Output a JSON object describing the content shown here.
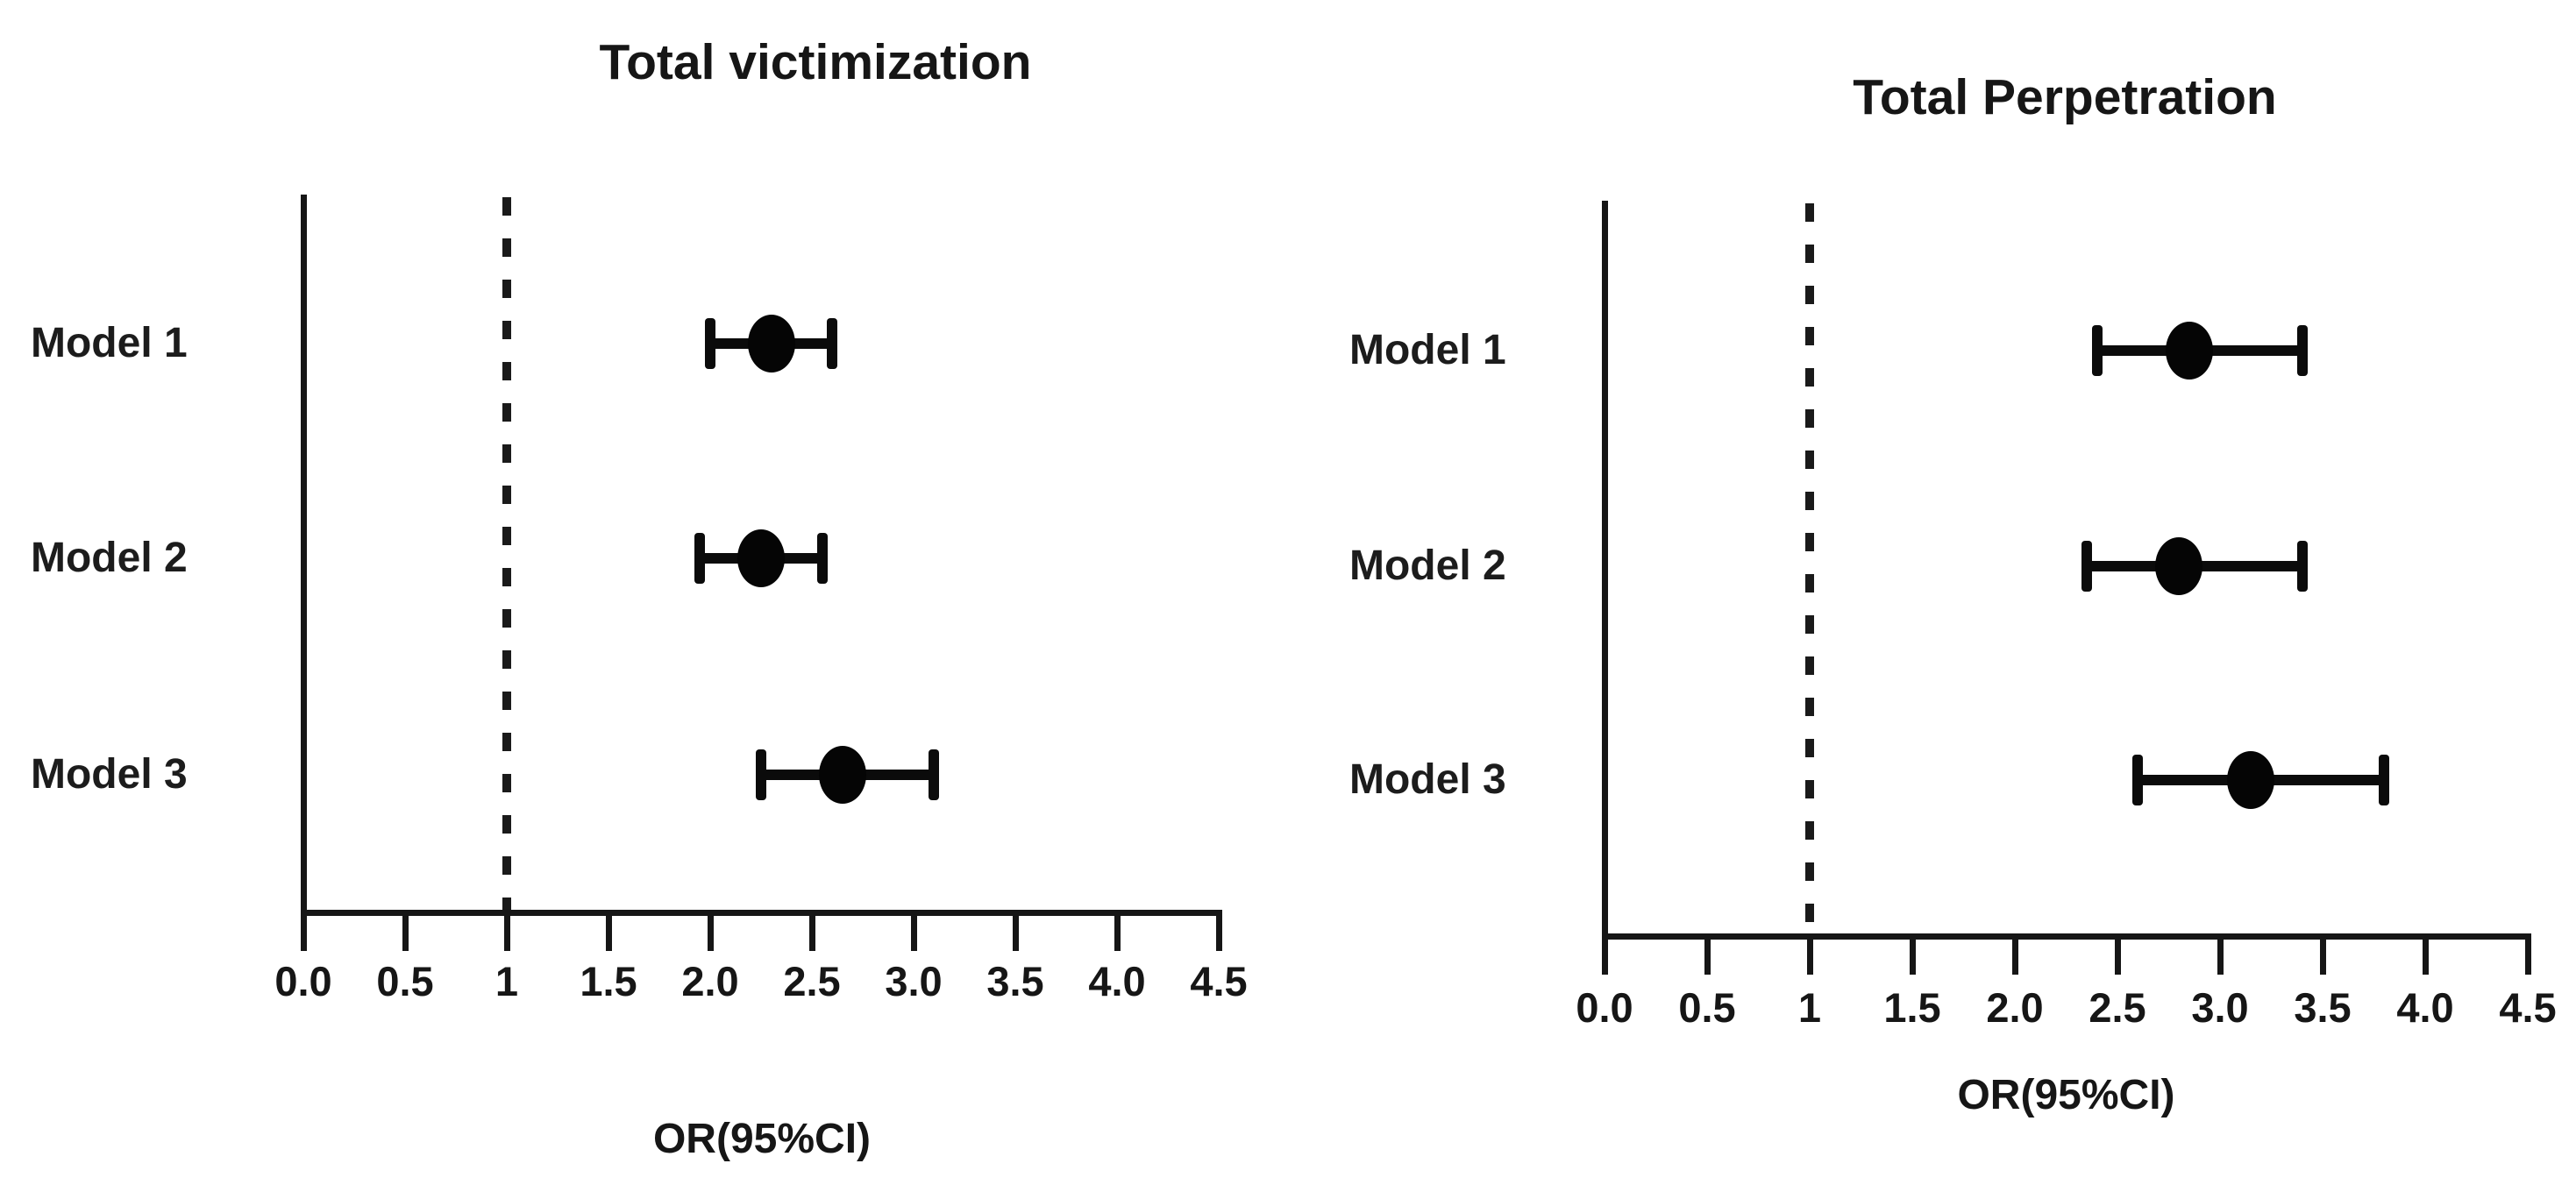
{
  "page": {
    "background_color": "#ffffff",
    "text_color": "#161616",
    "marker_color": "#050505"
  },
  "chart_data": [
    {
      "type": "scatter",
      "variant": "forest-plot-with-error-bars",
      "panel": "victimization",
      "title": "Total victimization",
      "xlabel": "OR(95%CI)",
      "xlim": [
        0,
        4.5
      ],
      "reference_line_x": 1,
      "reference_line_style": "dashed",
      "grid": false,
      "x_ticks": [
        {
          "v": 0.0,
          "label": "0.0"
        },
        {
          "v": 0.5,
          "label": "0.5"
        },
        {
          "v": 1.0,
          "label": "1"
        },
        {
          "v": 1.5,
          "label": "1.5"
        },
        {
          "v": 2.0,
          "label": "2.0"
        },
        {
          "v": 2.5,
          "label": "2.5"
        },
        {
          "v": 3.0,
          "label": "3.0"
        },
        {
          "v": 3.5,
          "label": "3.5"
        },
        {
          "v": 4.0,
          "label": "4.0"
        },
        {
          "v": 4.5,
          "label": "4.5"
        }
      ],
      "models": [
        {
          "label": "Model 1",
          "or": 2.3,
          "ci_low": 2.0,
          "ci_high": 2.6
        },
        {
          "label": "Model 2",
          "or": 2.25,
          "ci_low": 1.95,
          "ci_high": 2.55
        },
        {
          "label": "Model 3",
          "or": 2.65,
          "ci_low": 2.25,
          "ci_high": 3.1
        }
      ]
    },
    {
      "type": "scatter",
      "variant": "forest-plot-with-error-bars",
      "panel": "perpetration",
      "title": "Total Perpetration",
      "xlabel": "OR(95%CI)",
      "xlim": [
        0,
        4.5
      ],
      "reference_line_x": 1,
      "reference_line_style": "dashed",
      "grid": false,
      "x_ticks": [
        {
          "v": 0.0,
          "label": "0.0"
        },
        {
          "v": 0.5,
          "label": "0.5"
        },
        {
          "v": 1.0,
          "label": "1"
        },
        {
          "v": 1.5,
          "label": "1.5"
        },
        {
          "v": 2.0,
          "label": "2.0"
        },
        {
          "v": 2.5,
          "label": "2.5"
        },
        {
          "v": 3.0,
          "label": "3.0"
        },
        {
          "v": 3.5,
          "label": "3.5"
        },
        {
          "v": 4.0,
          "label": "4.0"
        },
        {
          "v": 4.5,
          "label": "4.5"
        }
      ],
      "models": [
        {
          "label": "Model 1",
          "or": 2.85,
          "ci_low": 2.4,
          "ci_high": 3.4
        },
        {
          "label": "Model 2",
          "or": 2.8,
          "ci_low": 2.35,
          "ci_high": 3.4
        },
        {
          "label": "Model 3",
          "or": 3.15,
          "ci_low": 2.6,
          "ci_high": 3.8
        }
      ]
    }
  ]
}
